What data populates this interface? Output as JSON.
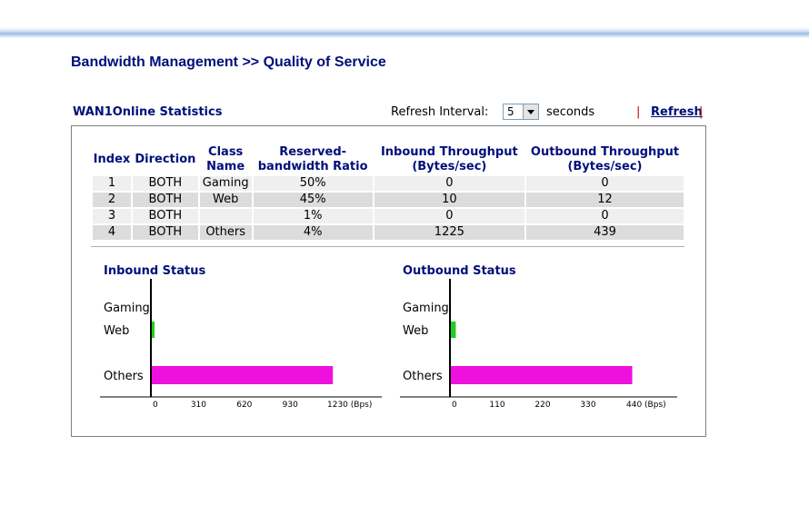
{
  "page": {
    "title": "Bandwidth Management >> Quality of Service"
  },
  "header": {
    "section_title": "WAN1Online Statistics",
    "refresh_interval_label": "Refresh Interval:",
    "refresh_interval_value": "5",
    "seconds_label": "seconds",
    "pipe_left": "|",
    "refresh_link": "Refresh",
    "pipe_right": "|"
  },
  "table": {
    "headers": [
      "Index",
      "Direction",
      "Class Name",
      "Reserved-bandwidth Ratio",
      "Inbound Throughput (Bytes/sec)",
      "Outbound Throughput (Bytes/sec)"
    ],
    "header_lines": [
      [
        "Index"
      ],
      [
        "Direction"
      ],
      [
        "Class",
        "Name"
      ],
      [
        "Reserved-",
        "bandwidth Ratio"
      ],
      [
        "Inbound Throughput",
        "(Bytes/sec)"
      ],
      [
        "Outbound Throughput",
        "(Bytes/sec)"
      ]
    ],
    "rows": [
      [
        "1",
        "BOTH",
        "Gaming",
        "50%",
        "0",
        "0"
      ],
      [
        "2",
        "BOTH",
        "Web",
        "45%",
        "10",
        "12"
      ],
      [
        "3",
        "BOTH",
        "",
        "1%",
        "0",
        "0"
      ],
      [
        "4",
        "BOTH",
        "Others",
        "4%",
        "1225",
        "439"
      ]
    ]
  },
  "colors": {
    "title": "#000f7a",
    "bar_web": "#22cc22",
    "bar_others": "#ee11dd"
  },
  "chart_data": [
    {
      "type": "bar",
      "orientation": "horizontal",
      "title": "Inbound Status",
      "categories": [
        "Gaming",
        "Web",
        "",
        "Others"
      ],
      "values": [
        0,
        10,
        0,
        1225
      ],
      "xticks": [
        0,
        310,
        620,
        930,
        1230
      ],
      "xtick_labels": [
        "0",
        "310",
        "620",
        "930",
        "1230 (Bps)"
      ],
      "xlim": [
        0,
        1230
      ],
      "unit": "(Bps)"
    },
    {
      "type": "bar",
      "orientation": "horizontal",
      "title": "Outbound Status",
      "categories": [
        "Gaming",
        "Web",
        "",
        "Others"
      ],
      "values": [
        0,
        12,
        0,
        439
      ],
      "xticks": [
        0,
        110,
        220,
        330,
        440
      ],
      "xtick_labels": [
        "0",
        "110",
        "220",
        "330",
        "440 (Bps)"
      ],
      "xlim": [
        0,
        440
      ],
      "unit": "(Bps)"
    }
  ]
}
